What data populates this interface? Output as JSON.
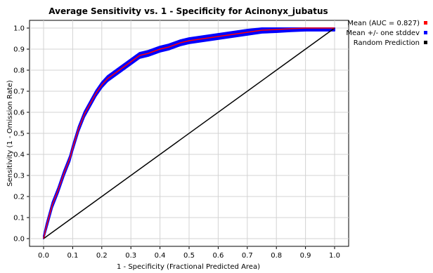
{
  "chart_data": {
    "type": "line",
    "title": "Average Sensitivity vs. 1 - Specificity for Acinonyx_jubatus",
    "xlabel": "1 - Specificity (Fractional Predicted Area)",
    "ylabel": "Sensitivity (1 - Omission Rate)",
    "xlim": [
      0,
      1
    ],
    "ylim": [
      0,
      1
    ],
    "grid": true,
    "legend_position": "right",
    "x_ticks": [
      "0.0",
      "0.1",
      "0.2",
      "0.3",
      "0.4",
      "0.5",
      "0.6",
      "0.7",
      "0.8",
      "0.9",
      "1.0"
    ],
    "y_ticks": [
      "0.0",
      "0.1",
      "0.2",
      "0.3",
      "0.4",
      "0.5",
      "0.6",
      "0.7",
      "0.8",
      "0.9",
      "1.0"
    ],
    "series": [
      {
        "name": "Mean (AUC = 0.827)",
        "color": "#ff0000",
        "x": [
          0.0,
          0.01,
          0.02,
          0.03,
          0.05,
          0.07,
          0.09,
          0.1,
          0.12,
          0.14,
          0.16,
          0.18,
          0.2,
          0.22,
          0.25,
          0.28,
          0.3,
          0.33,
          0.36,
          0.4,
          0.43,
          0.47,
          0.5,
          0.55,
          0.6,
          0.65,
          0.7,
          0.75,
          0.8,
          0.85,
          0.9,
          0.95,
          1.0
        ],
        "y": [
          0.0,
          0.06,
          0.11,
          0.16,
          0.23,
          0.31,
          0.38,
          0.43,
          0.52,
          0.59,
          0.64,
          0.69,
          0.73,
          0.76,
          0.79,
          0.82,
          0.84,
          0.87,
          0.88,
          0.9,
          0.91,
          0.93,
          0.94,
          0.95,
          0.96,
          0.97,
          0.98,
          0.99,
          0.993,
          0.997,
          1.0,
          1.0,
          1.0
        ]
      },
      {
        "name": "Mean +/- one stddev",
        "color": "#0000ff",
        "band": 0.013
      },
      {
        "name": "Random Prediction",
        "color": "#000000",
        "x": [
          0,
          1
        ],
        "y": [
          0,
          1
        ]
      }
    ]
  }
}
